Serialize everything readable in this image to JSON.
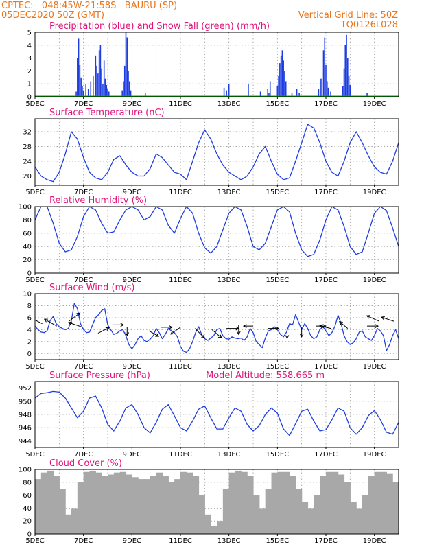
{
  "header": {
    "line1_left": "CPTEC:   048:45W-21:58S   BAURU (SP)",
    "line2_left": "05DEC2020 50Z (GMT)",
    "line1_right": "Vertical Grid Line: 50Z",
    "line2_right": "TQ0126L028"
  },
  "colors": {
    "blue": "#1e3de0",
    "green": "#00b000",
    "cloud": "#a8a8a8",
    "title": "#e0127a",
    "header": "#e8761e"
  },
  "x_axis": {
    "tick_labels": [
      "5DEC",
      "7DEC",
      "9DEC",
      "11DEC",
      "13DEC",
      "15DEC",
      "17DEC",
      "19DEC"
    ],
    "tick_days": [
      0,
      2,
      4,
      6,
      8,
      10,
      12,
      14
    ],
    "range_days": [
      0,
      15
    ]
  },
  "chart_data": [
    {
      "id": "precip",
      "type": "bar",
      "title": "Precipitation (blue) and Snow Fall (green) (mm/h)",
      "ylim": [
        0,
        5
      ],
      "yticks": [
        0,
        1,
        2,
        3,
        4,
        5
      ],
      "snow_line": 0,
      "x_days": [
        1.7,
        1.75,
        1.8,
        1.85,
        1.9,
        1.95,
        2.0,
        2.1,
        2.2,
        2.3,
        2.4,
        2.5,
        2.55,
        2.6,
        2.65,
        2.7,
        2.75,
        2.8,
        2.85,
        2.9,
        2.95,
        3.0,
        3.05,
        3.6,
        3.65,
        3.7,
        3.75,
        3.8,
        3.85,
        3.9,
        3.95,
        4.55,
        7.8,
        7.9,
        8.0,
        8.8,
        9.3,
        9.6,
        9.65,
        9.7,
        10.0,
        10.05,
        10.1,
        10.15,
        10.2,
        10.25,
        10.3,
        10.35,
        10.6,
        10.8,
        10.9,
        11.7,
        11.8,
        11.9,
        11.95,
        12.0,
        12.05,
        12.1,
        12.2,
        12.7,
        12.75,
        12.8,
        12.85,
        12.9,
        12.95,
        13.0,
        13.7
      ],
      "values": [
        0.4,
        3.0,
        4.5,
        2.5,
        1.5,
        0.8,
        0.5,
        1.0,
        0.6,
        1.2,
        1.6,
        3.2,
        2.4,
        1.8,
        3.6,
        4.0,
        2.2,
        1.0,
        2.8,
        1.4,
        0.9,
        0.6,
        0.4,
        0.5,
        1.2,
        2.4,
        5.0,
        4.6,
        2.0,
        1.2,
        0.5,
        0.3,
        0.7,
        0.5,
        1.0,
        1.0,
        0.4,
        0.6,
        0.3,
        1.2,
        0.8,
        1.6,
        2.6,
        3.2,
        3.6,
        2.8,
        2.0,
        1.2,
        0.3,
        0.6,
        0.3,
        0.6,
        1.4,
        3.6,
        4.6,
        2.5,
        1.2,
        0.7,
        0.4,
        0.8,
        2.2,
        4.0,
        4.8,
        3.0,
        1.6,
        0.9,
        0.3
      ]
    },
    {
      "id": "temp",
      "type": "line",
      "title": "Surface Temperature (nC)",
      "ylim": [
        17.5,
        35.5
      ],
      "yticks": [
        20,
        24,
        28,
        32
      ],
      "x_step_days": 0.25,
      "values": [
        22.5,
        20,
        19,
        18.5,
        21,
        26,
        32,
        30,
        25,
        21,
        19.5,
        19,
        21,
        24.5,
        25.5,
        23,
        21,
        20,
        20,
        22,
        26,
        25,
        23,
        21,
        20.5,
        19,
        24,
        29,
        32.5,
        30,
        26,
        23,
        21,
        20,
        19,
        20,
        22.5,
        26,
        28,
        24,
        20.5,
        19,
        19.5,
        24,
        29,
        34,
        33,
        29,
        24,
        21,
        20,
        24,
        29,
        32,
        29,
        25.5,
        22.5,
        21,
        20.5,
        24,
        29,
        32,
        31,
        27,
        23,
        21.5,
        20,
        24,
        29,
        34,
        33.5,
        28,
        23,
        21,
        20.5,
        22.5,
        27,
        32,
        31.5,
        27,
        23,
        21,
        21,
        22.5,
        26,
        28,
        27,
        25,
        22.5,
        21,
        21,
        24,
        27,
        27,
        26.5,
        25,
        23.5,
        22.5,
        23,
        22.5,
        22,
        22,
        21.5,
        20.5,
        20,
        22.5,
        27,
        33,
        31,
        27.5,
        23,
        21,
        20.5,
        22,
        27,
        32,
        31,
        26
      ]
    },
    {
      "id": "rh",
      "type": "line",
      "title": "Relative Humidity (%)",
      "ylim": [
        0,
        100
      ],
      "yticks": [
        0,
        20,
        40,
        60,
        80,
        100
      ],
      "x_step_days": 0.25,
      "values": [
        80,
        100,
        100,
        75,
        45,
        32,
        35,
        55,
        85,
        100,
        95,
        75,
        60,
        62,
        80,
        95,
        100,
        95,
        80,
        85,
        100,
        95,
        72,
        60,
        82,
        100,
        90,
        60,
        38,
        30,
        40,
        65,
        90,
        100,
        95,
        70,
        40,
        35,
        45,
        70,
        95,
        100,
        92,
        60,
        35,
        25,
        28,
        50,
        80,
        100,
        95,
        70,
        40,
        28,
        32,
        60,
        90,
        100,
        94,
        68,
        40,
        30,
        35,
        60,
        88,
        100,
        95,
        70,
        45,
        35,
        38,
        60,
        90,
        100,
        92,
        60,
        35,
        30,
        40,
        70,
        95,
        100,
        95,
        80,
        70,
        75,
        95,
        100,
        95,
        80,
        60,
        55,
        65,
        90,
        100,
        100,
        90,
        80,
        75,
        85,
        90,
        100,
        95,
        85,
        75,
        70,
        70,
        80,
        85,
        75,
        55,
        38,
        30,
        45,
        70,
        85,
        85,
        65,
        40,
        28,
        30,
        50
      ]
    },
    {
      "id": "wind",
      "type": "line",
      "title": "Surface Wind (m/s)",
      "ylim": [
        -1,
        10
      ],
      "yticks": [
        0,
        2,
        4,
        6,
        8,
        10
      ],
      "x_step_days": 0.125,
      "values": [
        4.6,
        4.0,
        3.6,
        3.5,
        3.8,
        5.5,
        6.2,
        5.0,
        4.5,
        4.2,
        4.0,
        4.2,
        5.5,
        8.4,
        7.5,
        5.0,
        4.0,
        3.5,
        3.6,
        4.8,
        6.0,
        6.5,
        7.2,
        7.5,
        4.8,
        4.0,
        3.2,
        3.4,
        3.8,
        4.0,
        3.0,
        1.5,
        0.8,
        1.5,
        2.5,
        3.0,
        2.2,
        2.0,
        2.4,
        3.0,
        4.2,
        3.5,
        2.5,
        3.2,
        4.2,
        3.8,
        3.5,
        2.8,
        1.2,
        0.4,
        0.2,
        0.8,
        2.0,
        3.5,
        4.5,
        3.2,
        2.5,
        2.2,
        2.6,
        3.0,
        4.0,
        4.2,
        3.0,
        2.5,
        2.4,
        2.8,
        2.6,
        2.5,
        2.6,
        2.2,
        2.8,
        4.2,
        3.5,
        2.0,
        1.5,
        1.0,
        2.6,
        3.8,
        4.0,
        4.5,
        4.0,
        3.2,
        2.8,
        3.6,
        5.0,
        4.8,
        6.5,
        5.2,
        4.0,
        5.0,
        4.2,
        3.0,
        2.5,
        2.8,
        4.0,
        4.5,
        3.8,
        3.0,
        3.5,
        4.6,
        6.4,
        5.0,
        3.0,
        2.0,
        1.5,
        1.8,
        2.5,
        3.6,
        3.8,
        2.8,
        2.5,
        2.2,
        3.0,
        4.2,
        3.8,
        3.0,
        0.5,
        1.5,
        3.0,
        4.0,
        2.5,
        2.2,
        3.0,
        4.2,
        4.0,
        3.5,
        2.8,
        3.0,
        3.5,
        4.0,
        5.8,
        5.0,
        3.5,
        2.5,
        2.2,
        2.8,
        4.0,
        4.0,
        3.0,
        2.5,
        2.0,
        1.5,
        1.8,
        2.5,
        4.6,
        5.0,
        4.5,
        3.8,
        3.5,
        3.6,
        3.8,
        4.0,
        4.6,
        4.0,
        2.5,
        2.2,
        3.0,
        5.5,
        5.0,
        4.0,
        3.8,
        3.5,
        3.6,
        4.0,
        3.8,
        4.6,
        5.0,
        5.5,
        4.6,
        3.0,
        1.5,
        1.0,
        2.5,
        4.5,
        5.2,
        5.0,
        4.5,
        4.6,
        5.5,
        4.8,
        4.0,
        4.0,
        6.0,
        5.5,
        4.8,
        0.5,
        0.8,
        1.2,
        2.8,
        4.8,
        5.5,
        5.0,
        4.2,
        3.5,
        4.5,
        6.2,
        5.5,
        4.5,
        4.5,
        5.5,
        6.3,
        5.8
      ]
    },
    {
      "id": "pressure",
      "type": "line",
      "title": "Surface Pressure (hPa)",
      "annotation": "Model Altitude: 558.665 m",
      "ylim": [
        943,
        953
      ],
      "yticks": [
        944,
        946,
        948,
        950,
        952
      ],
      "x_step_days": 0.25,
      "values": [
        950.5,
        951.2,
        951.3,
        951.5,
        951.4,
        950.5,
        949,
        947.5,
        948.5,
        950.5,
        950.8,
        949,
        946.5,
        945.5,
        947,
        949,
        949.5,
        948,
        946,
        945.2,
        946.8,
        948.8,
        949.5,
        947.8,
        946,
        945.5,
        947,
        948.8,
        949.3,
        947.5,
        945.8,
        945.8,
        947.5,
        949,
        948.5,
        946.5,
        945.5,
        946.3,
        948,
        949,
        948.2,
        945.8,
        944.8,
        946.6,
        948.5,
        948.8,
        947,
        945.5,
        945.7,
        947.2,
        949,
        948.5,
        946,
        945,
        946,
        947.8,
        948.6,
        947.2,
        945.3,
        945,
        946.8,
        948.3,
        948.5,
        946.5,
        945,
        945.5,
        947.2,
        948.5,
        948,
        946,
        945.2,
        945.8,
        947.3,
        948,
        947.3,
        945.5,
        945,
        946.2,
        947.6,
        948,
        946.8,
        945.2,
        944.9,
        946.2,
        947.3,
        947.5,
        946.4,
        945.2,
        945.3,
        946.5,
        947.2,
        946.5,
        944.8,
        944,
        944.8,
        946,
        946.4,
        945.5,
        944.5,
        944.6,
        946,
        946.5,
        946,
        944.8,
        943.5,
        944.5,
        945.8,
        946,
        945,
        943.5,
        943.2,
        944,
        945,
        945.2,
        944.5,
        943.2,
        943,
        943.8,
        944.5,
        944.3,
        943
      ]
    },
    {
      "id": "cloud",
      "type": "area",
      "title": "Cloud Cover (%)",
      "ylim": [
        0,
        100
      ],
      "yticks": [
        0,
        20,
        40,
        60,
        80,
        100
      ],
      "x_step_days": 0.25,
      "values": [
        85,
        95,
        98,
        90,
        70,
        30,
        40,
        80,
        96,
        98,
        95,
        90,
        92,
        95,
        96,
        92,
        88,
        85,
        85,
        90,
        95,
        90,
        80,
        85,
        96,
        95,
        90,
        60,
        30,
        12,
        20,
        70,
        95,
        98,
        96,
        90,
        60,
        40,
        70,
        95,
        96,
        96,
        90,
        70,
        50,
        40,
        60,
        90,
        96,
        96,
        92,
        80,
        50,
        40,
        60,
        90,
        96,
        96,
        94,
        80,
        55,
        40,
        55,
        90,
        96,
        96,
        92,
        70,
        30,
        10,
        30,
        80,
        96,
        97,
        92,
        60,
        30,
        20,
        60,
        90,
        96,
        96,
        94,
        85,
        80,
        90,
        96,
        96,
        94,
        80,
        60,
        60,
        90,
        96,
        97,
        96,
        94,
        90,
        90,
        94,
        96,
        95,
        94,
        92,
        90,
        88,
        90,
        92,
        92,
        85,
        60,
        30,
        20,
        50,
        85,
        95,
        90,
        60,
        30,
        12,
        20,
        55
      ]
    }
  ]
}
